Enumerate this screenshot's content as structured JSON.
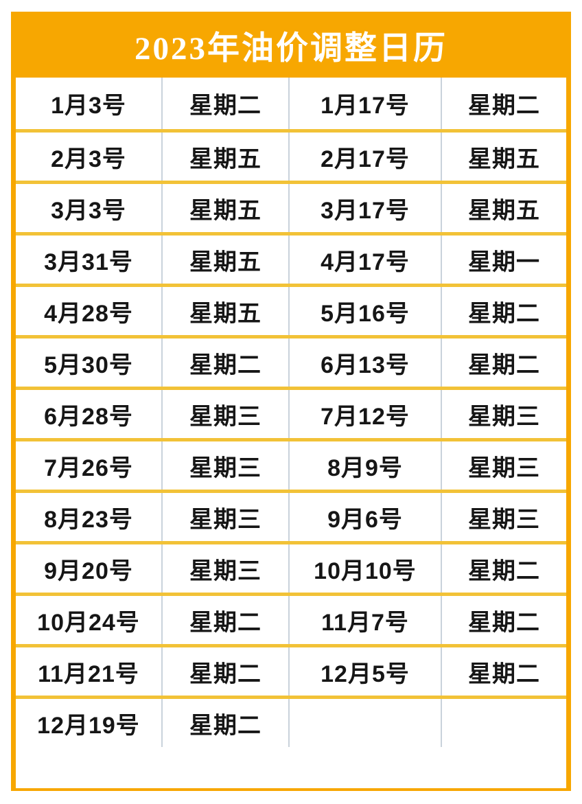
{
  "calendar": {
    "title": "2023年油价调整日历",
    "colors": {
      "accent_orange": "#F7A701",
      "row_divider_yellow": "#F2C237",
      "column_divider_gray": "#C9D2DB",
      "title_text": "#FFFFFF",
      "cell_text": "#161616",
      "page_background": "#FFFFFF"
    },
    "rows": [
      [
        "1月3号",
        "星期二",
        "1月17号",
        "星期二"
      ],
      [
        "2月3号",
        "星期五",
        "2月17号",
        "星期五"
      ],
      [
        "3月3号",
        "星期五",
        "3月17号",
        "星期五"
      ],
      [
        "3月31号",
        "星期五",
        "4月17号",
        "星期一"
      ],
      [
        "4月28号",
        "星期五",
        "5月16号",
        "星期二"
      ],
      [
        "5月30号",
        "星期二",
        "6月13号",
        "星期二"
      ],
      [
        "6月28号",
        "星期三",
        "7月12号",
        "星期三"
      ],
      [
        "7月26号",
        "星期三",
        "8月9号",
        "星期三"
      ],
      [
        "8月23号",
        "星期三",
        "9月6号",
        "星期三"
      ],
      [
        "9月20号",
        "星期三",
        "10月10号",
        "星期二"
      ],
      [
        "10月24号",
        "星期二",
        "11月7号",
        "星期二"
      ],
      [
        "11月21号",
        "星期二",
        "12月5号",
        "星期二"
      ],
      [
        "12月19号",
        "星期二",
        "",
        ""
      ]
    ]
  }
}
